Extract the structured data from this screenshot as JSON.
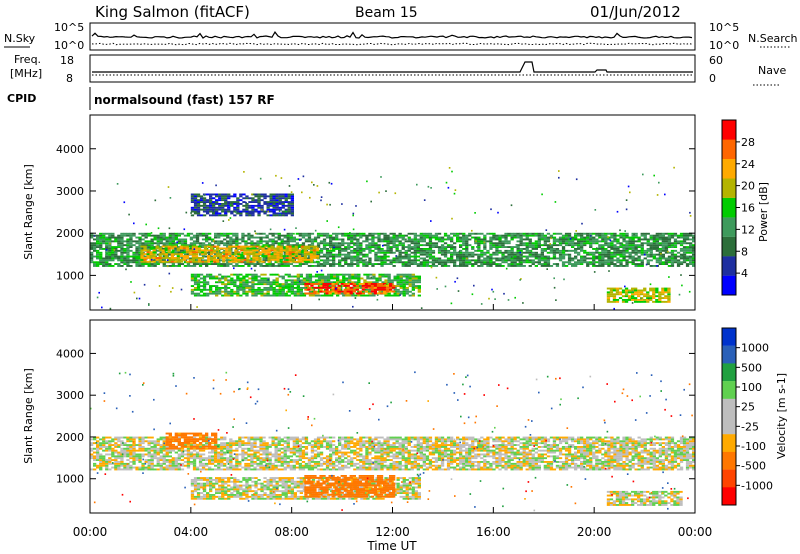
{
  "header": {
    "station": "King Salmon (fitACF)",
    "beam": "Beam 15",
    "date": "01/Jun/2012"
  },
  "noise_panel": {
    "left_label": "N.Sky",
    "left_ticks": [
      "10^5",
      "10^0"
    ],
    "right_ticks": [
      "10^5",
      "10^0"
    ],
    "right_label": "N.Search"
  },
  "freq_panel": {
    "label_line1": "Freq.",
    "label_line2": "[MHz]",
    "left_ticks": [
      "18",
      "8"
    ],
    "right_ticks": [
      "60",
      "0"
    ],
    "right_label": "Nave"
  },
  "cpid": {
    "label": "CPID",
    "text": "normalsound (fast) 157 RF"
  },
  "colors": {
    "power_scale": [
      "#0000ff",
      "#1e2fa0",
      "#2c6e3a",
      "#3e9a5c",
      "#00cc00",
      "#b4b400",
      "#ffaa00",
      "#ff6600",
      "#ff0000"
    ],
    "velocity_scale": [
      "#0033cc",
      "#2a60b8",
      "#20a040",
      "#60d050",
      "#bebebe",
      "#bebebe",
      "#ffaa00",
      "#ff7700",
      "#ff4400",
      "#ff0000"
    ]
  },
  "chart_data": [
    {
      "type": "heatmap",
      "name": "power",
      "xlabel": "",
      "ylabel": "Slant Range [km]",
      "y_ticks": [
        "1000",
        "2000",
        "3000",
        "4000"
      ],
      "ylim": [
        180,
        4800
      ],
      "colorbar": {
        "label": "Power [dB]",
        "ticks": [
          "4",
          "8",
          "12",
          "16",
          "20",
          "24",
          "28"
        ],
        "range": [
          0,
          30
        ]
      },
      "bands": [
        {
          "t_start": 0.0,
          "t_end": 24.0,
          "r_start": 1200,
          "r_end": 2000,
          "level": 11
        },
        {
          "t_start": 2.0,
          "t_end": 9.0,
          "r_start": 1300,
          "r_end": 1700,
          "level": 20
        },
        {
          "t_start": 4.0,
          "t_end": 13.0,
          "r_start": 500,
          "r_end": 1000,
          "level": 14
        },
        {
          "t_start": 8.5,
          "t_end": 12.0,
          "r_start": 550,
          "r_end": 800,
          "level": 26
        },
        {
          "t_start": 4.0,
          "t_end": 8.0,
          "r_start": 2400,
          "r_end": 2900,
          "level": 6
        },
        {
          "t_start": 20.5,
          "t_end": 23.0,
          "r_start": 350,
          "r_end": 700,
          "level": 18
        }
      ]
    },
    {
      "type": "heatmap",
      "name": "velocity",
      "xlabel": "Time UT",
      "ylabel": "Slant Range [km]",
      "x_ticks": [
        "00:00",
        "04:00",
        "08:00",
        "12:00",
        "16:00",
        "20:00",
        "00:00"
      ],
      "xlim": [
        0,
        24
      ],
      "y_ticks": [
        "1000",
        "2000",
        "3000",
        "4000"
      ],
      "ylim": [
        180,
        4800
      ],
      "colorbar": {
        "label": "Velocity [m s-1]",
        "ticks": [
          "1000",
          "500",
          "100",
          "25",
          "-25",
          "-100",
          "-500",
          "-1000"
        ]
      },
      "bands": [
        {
          "t_start": 0.0,
          "t_end": 24.0,
          "r_start": 1200,
          "r_end": 2000,
          "level": 0
        },
        {
          "t_start": 4.0,
          "t_end": 13.0,
          "r_start": 500,
          "r_end": 1000,
          "level": 0
        },
        {
          "t_start": 8.5,
          "t_end": 12.0,
          "r_start": 550,
          "r_end": 1050,
          "level": -200
        },
        {
          "t_start": 3.0,
          "t_end": 5.0,
          "r_start": 1700,
          "r_end": 2100,
          "level": -150
        },
        {
          "t_start": 20.5,
          "t_end": 23.5,
          "r_start": 350,
          "r_end": 700,
          "level": 0
        }
      ]
    }
  ]
}
